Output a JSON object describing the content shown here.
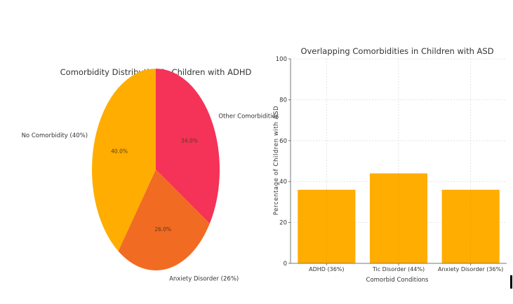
{
  "chart_data": [
    {
      "type": "pie",
      "title": "Comorbidity Distribution in Children with ADHD",
      "slices": [
        {
          "label": "Other Comorbidities",
          "value": 34.0,
          "pct_label": "34.0%",
          "color": "#f53257"
        },
        {
          "label": "Anxiety Disorder (26%)",
          "value": 26.0,
          "pct_label": "26.0%",
          "color": "#f26b22"
        },
        {
          "label": "No Comorbidity (40%)",
          "value": 40.0,
          "pct_label": "40.0%",
          "color": "#ffad00"
        }
      ],
      "start_angle_deg": 90,
      "direction": "clockwise"
    },
    {
      "type": "bar",
      "title": "Overlapping Comorbidities in Children with ASD",
      "xlabel": "Comorbid Conditions",
      "ylabel": "Percentage of Children with ASD",
      "categories": [
        "ADHD (36%)",
        "Tic Disorder (44%)",
        "Anxiety Disorder (36%)"
      ],
      "values": [
        36,
        44,
        36
      ],
      "ylim": [
        0,
        100
      ],
      "yticks": [
        0,
        20,
        40,
        60,
        80,
        100
      ],
      "grid": true,
      "bar_color": "#ffad00"
    }
  ]
}
